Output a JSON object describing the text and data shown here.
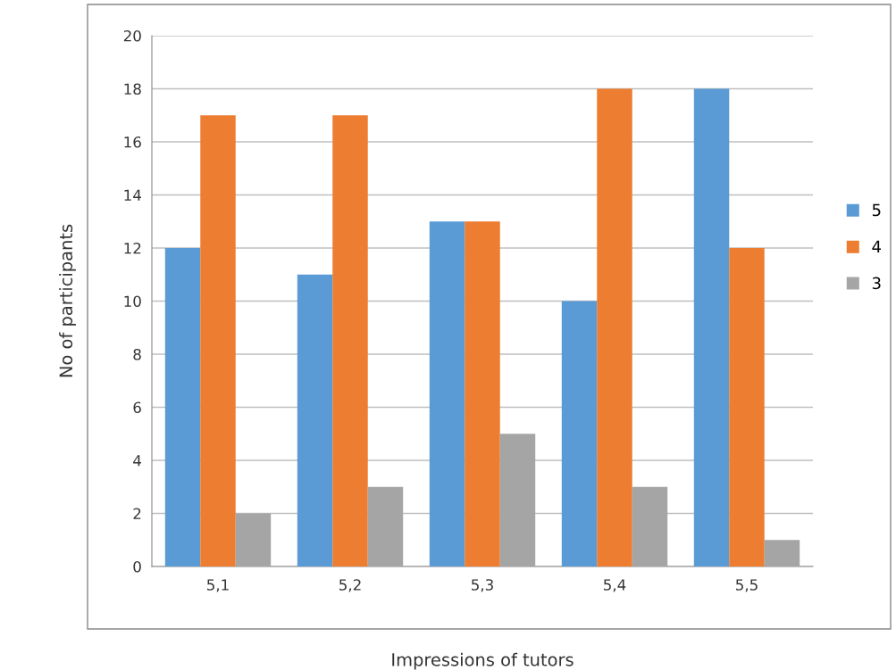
{
  "chart_data": {
    "type": "bar",
    "xlabel": "Impressions of tutors",
    "ylabel": "No of participants",
    "categories": [
      "5,1",
      "5,2",
      "5,3",
      "5,4",
      "5,5"
    ],
    "series": [
      {
        "name": "5",
        "color": "#5b9bd5",
        "values": [
          12,
          11,
          13,
          10,
          18
        ]
      },
      {
        "name": "4",
        "color": "#ed7d31",
        "values": [
          17,
          17,
          13,
          18,
          12
        ]
      },
      {
        "name": "3",
        "color": "#a5a5a5",
        "values": [
          2,
          3,
          5,
          3,
          1
        ]
      }
    ],
    "ylim": [
      0,
      20
    ],
    "yticks": [
      0,
      2,
      4,
      6,
      8,
      10,
      12,
      14,
      16,
      18,
      20
    ],
    "grid": "y",
    "legend": "right"
  }
}
